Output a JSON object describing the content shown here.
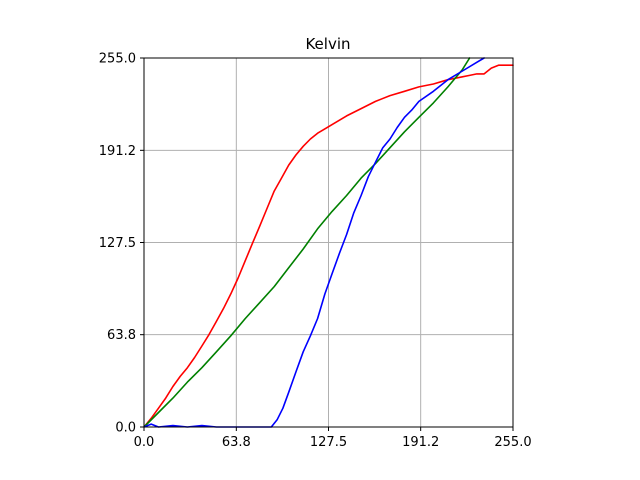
{
  "chart_data": {
    "type": "line",
    "title": "Kelvin",
    "xlabel": "",
    "ylabel": "",
    "xlim": [
      0,
      255
    ],
    "ylim": [
      0,
      255
    ],
    "xticks": [
      0,
      63.8,
      127.5,
      191.2,
      255
    ],
    "yticks": [
      0,
      63.8,
      127.5,
      191.2,
      255
    ],
    "xtick_labels": [
      "0.0",
      "63.8",
      "127.5",
      "191.2",
      "255.0"
    ],
    "ytick_labels": [
      "0.0",
      "63.8",
      "127.5",
      "191.2",
      "255.0"
    ],
    "grid": true,
    "legend": "none",
    "series": [
      {
        "color": "#ff0000",
        "x": [
          0,
          5,
          10,
          15,
          20,
          25,
          30,
          35,
          40,
          45,
          50,
          55,
          60,
          65,
          70,
          75,
          80,
          85,
          90,
          95,
          100,
          105,
          110,
          115,
          120,
          130,
          140,
          150,
          160,
          170,
          180,
          190,
          200,
          210,
          220,
          225,
          230,
          235,
          240,
          245,
          250,
          255
        ],
        "y": [
          0,
          6,
          13,
          20,
          28,
          35,
          41,
          48,
          56,
          64,
          73,
          82,
          92,
          103,
          115,
          127,
          139,
          151,
          163,
          172,
          181,
          188,
          194,
          199,
          203,
          209,
          215,
          220,
          225,
          229,
          232,
          235,
          237,
          240,
          242,
          243,
          244,
          244,
          248,
          250,
          250,
          250
        ]
      },
      {
        "color": "#008000",
        "x": [
          0,
          10,
          20,
          30,
          40,
          50,
          60,
          70,
          80,
          90,
          100,
          110,
          120,
          130,
          140,
          150,
          160,
          170,
          180,
          190,
          200,
          210,
          220,
          225
        ],
        "y": [
          0,
          10,
          20,
          31,
          41,
          52,
          63,
          75,
          86,
          97,
          110,
          123,
          137,
          149,
          160,
          172,
          182,
          193,
          204,
          214,
          224,
          235,
          247,
          255
        ]
      },
      {
        "color": "#0000ff",
        "x": [
          0,
          5,
          10,
          20,
          30,
          40,
          50,
          60,
          70,
          80,
          88,
          92,
          96,
          100,
          105,
          110,
          115,
          120,
          125,
          130,
          135,
          140,
          145,
          150,
          155,
          160,
          165,
          170,
          175,
          180,
          185,
          190,
          200,
          210,
          220,
          230,
          235
        ],
        "y": [
          0,
          2,
          0,
          1,
          0,
          1,
          0,
          0,
          0,
          0,
          0,
          5,
          13,
          24,
          38,
          52,
          63,
          75,
          92,
          106,
          120,
          133,
          148,
          160,
          173,
          183,
          193,
          199,
          207,
          214,
          219,
          225,
          232,
          240,
          246,
          252,
          255
        ]
      }
    ]
  }
}
